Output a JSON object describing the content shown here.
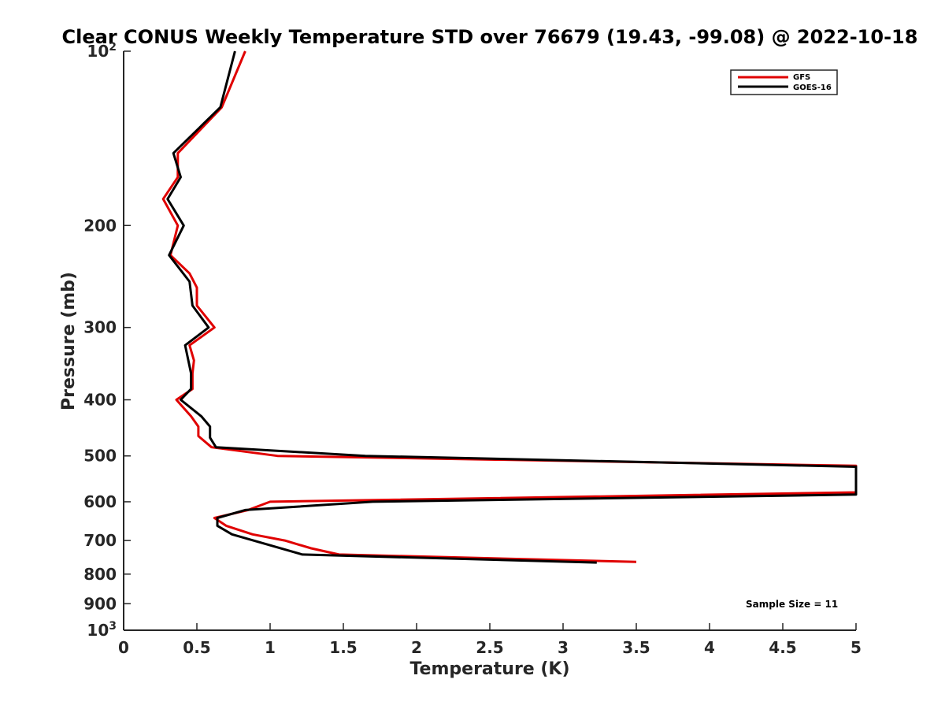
{
  "chart_data": {
    "type": "line",
    "title": "Clear CONUS Weekly Temperature STD over 76679 (19.43, -99.08) @ 2022-10-18",
    "xlabel": "Temperature (K)",
    "ylabel": "Pressure (mb)",
    "xlim": [
      0,
      5
    ],
    "ylim": [
      100,
      1000
    ],
    "y_scale": "log",
    "y_reversed": true,
    "x_ticks": [
      "0",
      "0.5",
      "1",
      "1.5",
      "2",
      "2.5",
      "3",
      "3.5",
      "4",
      "4.5",
      "5"
    ],
    "y_ticks": [
      {
        "value": 100,
        "base": "10",
        "exp": "2"
      },
      {
        "value": 200,
        "label": "200"
      },
      {
        "value": 300,
        "label": "300"
      },
      {
        "value": 400,
        "label": "400"
      },
      {
        "value": 500,
        "label": "500"
      },
      {
        "value": 600,
        "label": "600"
      },
      {
        "value": 700,
        "label": "700"
      },
      {
        "value": 800,
        "label": "800"
      },
      {
        "value": 900,
        "label": "900"
      },
      {
        "value": 1000,
        "base": "10",
        "exp": "3"
      }
    ],
    "legend_position": "top-right",
    "grid": false,
    "annotation": "Sample Size = 11",
    "series": [
      {
        "name": "GFS",
        "color": "#e00000",
        "points": [
          [
            0.83,
            100
          ],
          [
            0.67,
            125
          ],
          [
            0.37,
            150
          ],
          [
            0.37,
            165
          ],
          [
            0.27,
            180
          ],
          [
            0.37,
            200
          ],
          [
            0.32,
            225
          ],
          [
            0.45,
            242
          ],
          [
            0.5,
            256
          ],
          [
            0.5,
            275
          ],
          [
            0.62,
            300
          ],
          [
            0.45,
            322
          ],
          [
            0.48,
            342
          ],
          [
            0.47,
            360
          ],
          [
            0.47,
            383
          ],
          [
            0.36,
            400
          ],
          [
            0.46,
            427
          ],
          [
            0.51,
            445
          ],
          [
            0.51,
            462
          ],
          [
            0.6,
            483
          ],
          [
            1.05,
            500
          ],
          [
            5.0,
            520
          ],
          [
            5.0,
            578
          ],
          [
            1.0,
            600
          ],
          [
            0.85,
            620
          ],
          [
            0.62,
            640
          ],
          [
            0.7,
            660
          ],
          [
            0.88,
            683
          ],
          [
            1.1,
            700
          ],
          [
            1.28,
            722
          ],
          [
            1.47,
            740
          ],
          [
            3.5,
            762
          ]
        ]
      },
      {
        "name": "GOES-16",
        "color": "#000000",
        "points": [
          [
            0.76,
            100
          ],
          [
            0.66,
            125
          ],
          [
            0.34,
            150
          ],
          [
            0.39,
            165
          ],
          [
            0.3,
            180
          ],
          [
            0.41,
            200
          ],
          [
            0.31,
            225
          ],
          [
            0.45,
            250
          ],
          [
            0.47,
            275
          ],
          [
            0.58,
            300
          ],
          [
            0.42,
            322
          ],
          [
            0.46,
            360
          ],
          [
            0.46,
            383
          ],
          [
            0.39,
            400
          ],
          [
            0.53,
            427
          ],
          [
            0.59,
            445
          ],
          [
            0.59,
            465
          ],
          [
            0.63,
            483
          ],
          [
            1.65,
            500
          ],
          [
            5.0,
            522
          ],
          [
            5.0,
            583
          ],
          [
            1.7,
            600
          ],
          [
            0.83,
            620
          ],
          [
            0.64,
            640
          ],
          [
            0.64,
            660
          ],
          [
            0.74,
            683
          ],
          [
            1.22,
            740
          ],
          [
            3.23,
            764
          ]
        ]
      }
    ]
  }
}
